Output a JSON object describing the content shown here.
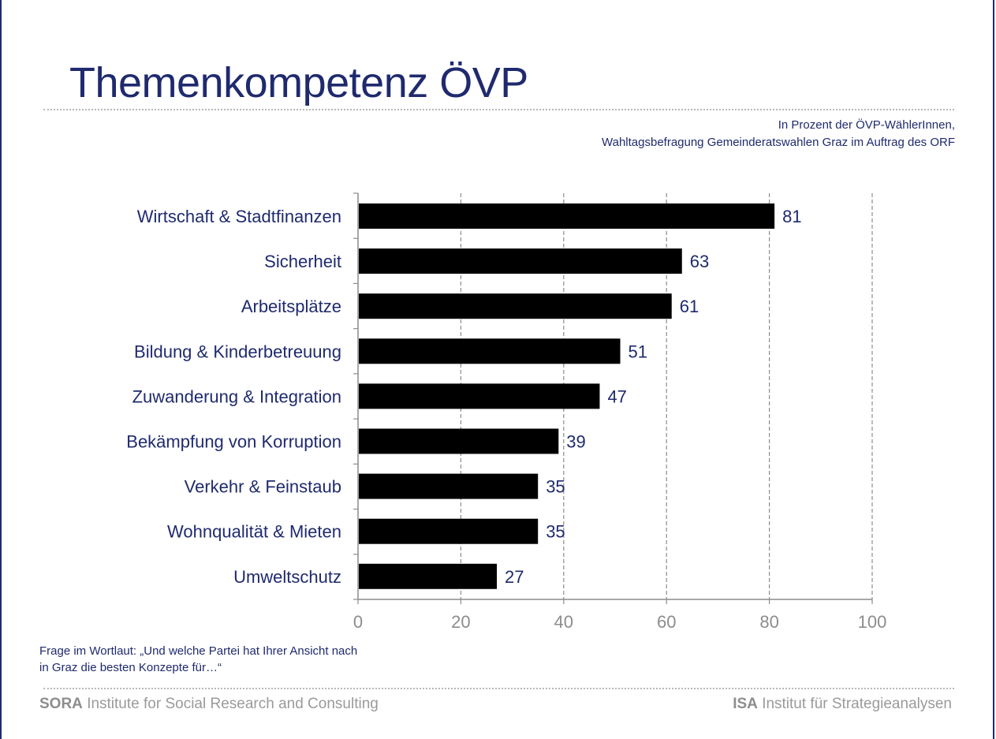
{
  "page": {
    "title": "Themenkompetenz ÖVP",
    "subtitle_line1": "In Prozent der ÖVP-WählerInnen,",
    "subtitle_line2": "Wahltagsbefragung Gemeinderatswahlen Graz im Auftrag des ORF",
    "question_line1": "Frage im Wortlaut: „Und welche Partei hat Ihrer Ansicht nach",
    "question_line2": "in Graz die besten Konzepte für…“",
    "footer_left_brand": "SORA",
    "footer_left_text": "Institute for Social Research and Consulting",
    "footer_right_brand": "ISA",
    "footer_right_text": "Institut für Strategieanalysen"
  },
  "colors": {
    "accent": "#1f2a6e",
    "bar": "#000000",
    "grid": "#8c8c8c",
    "footer": "#9a9a9a"
  },
  "chart_data": {
    "type": "bar",
    "orientation": "horizontal",
    "categories": [
      "Wirtschaft & Stadtfinanzen",
      "Sicherheit",
      "Arbeitsplätze",
      "Bildung & Kinderbetreuung",
      "Zuwanderung & Integration",
      "Bekämpfung von Korruption",
      "Verkehr & Feinstaub",
      "Wohnqualität & Mieten",
      "Umweltschutz"
    ],
    "values": [
      81,
      63,
      61,
      51,
      47,
      39,
      35,
      35,
      27
    ],
    "xlim": [
      0,
      100
    ],
    "xticks": [
      0,
      20,
      40,
      60,
      80,
      100
    ],
    "grid": "vertical dashed",
    "data_labels": true
  }
}
